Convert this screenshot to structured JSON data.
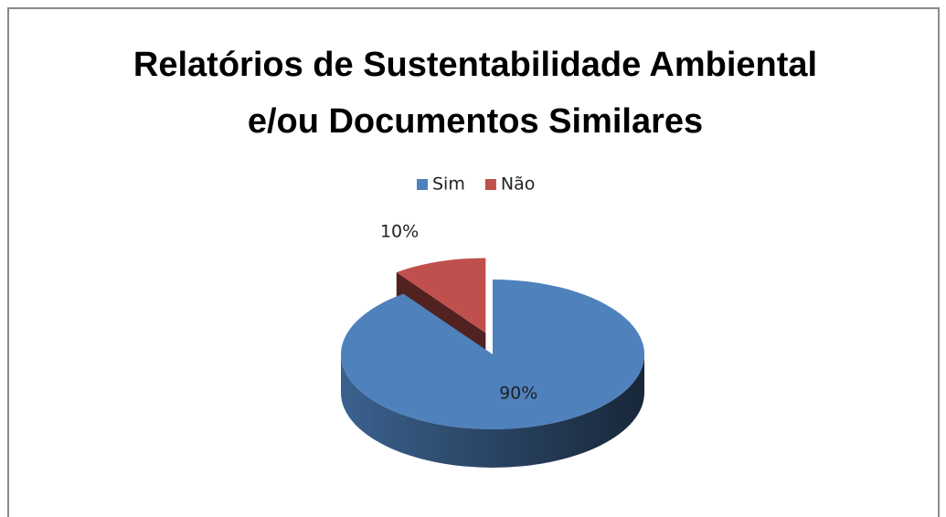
{
  "chart_data": {
    "type": "pie",
    "title": "Relatórios de Sustentabilidade Ambiental e/ou Documentos Similares",
    "categories": [
      "Sim",
      "Não"
    ],
    "values": [
      90,
      10
    ],
    "value_labels": [
      "90%",
      "10%"
    ],
    "colors": [
      "#4f81bd",
      "#c0504d"
    ],
    "legend": "top",
    "explode": [
      false,
      true
    ]
  }
}
